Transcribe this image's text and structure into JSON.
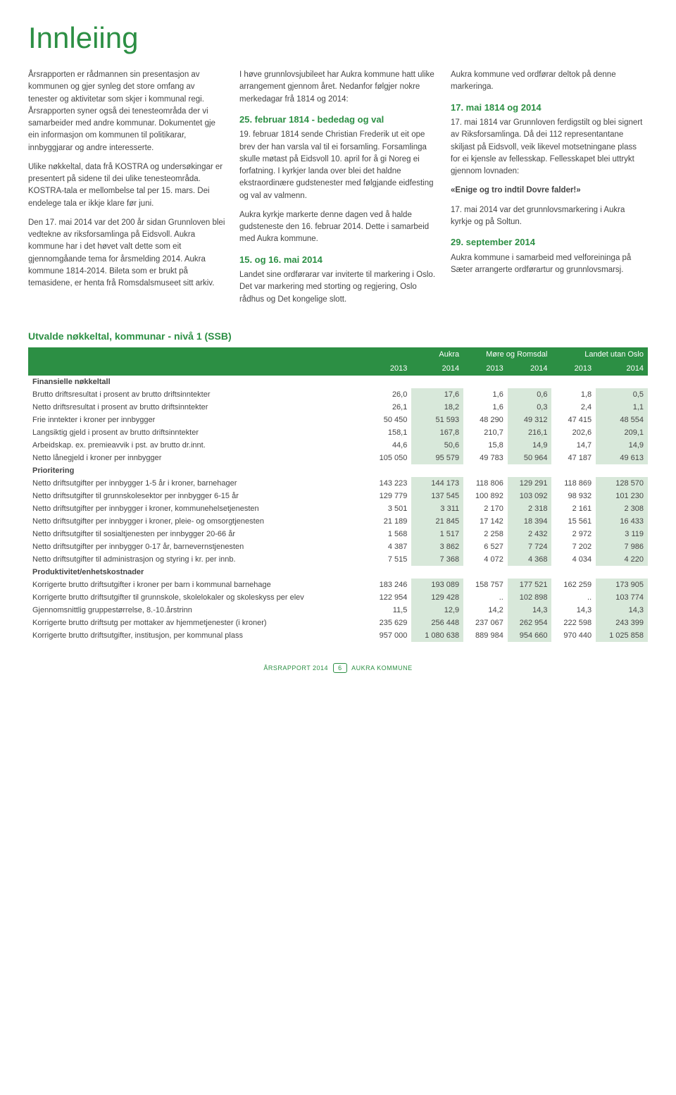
{
  "title": "Innleiing",
  "col1": {
    "p1": "Årsrapporten er rådmannen sin presentasjon av kommunen og gjer synleg det store omfang av tenester og aktivitetar som skjer i kommunal regi. Årsrapporten syner også dei tenesteområda der vi samarbeider med andre kommunar. Dokumentet gje ein informasjon om kommunen til politikarar, innbyggjarar og andre interesserte.",
    "p2": "Ulike nøkkeltal, data frå KOSTRA og undersøkingar er presentert på sidene til dei ulike tenesteområda. KOSTRA-tala er mellombelse tal per 15. mars. Dei endelege tala er ikkje klare før juni.",
    "p3": "Den 17. mai 2014 var det 200 år sidan Grunnloven blei vedtekne av riksforsamlinga på Eidsvoll. Aukra kommune har i det høvet valt dette som eit gjennomgåande tema for årsmelding 2014. Aukra kommune 1814-2014. Bileta som er brukt på temasidene, er henta frå Romsdalsmuseet sitt arkiv."
  },
  "col2": {
    "p1": "I høve grunnlovsjubileet har Aukra kommune hatt ulike arrangement gjennom året. Nedanfor følgjer nokre merkedagar frå 1814 og 2014:",
    "h1": "25. februar 1814 - bededag og val",
    "p2": "19. februar 1814 sende Christian Frederik ut eit ope brev der han varsla val til ei forsamling. Forsamlinga skulle møtast på Eidsvoll 10. april for å gi Noreg ei forfatning. I kyrkjer landa over blei det haldne ekstraordinære gudstenester med følgjande eidfesting og val av valmenn.",
    "p3": "Aukra kyrkje markerte denne dagen ved å halde gudsteneste den 16. februar 2014.  Dette i samarbeid med Aukra kommune.",
    "h2": "15. og 16. mai 2014",
    "p4": "Landet sine ordførarar var inviterte til markering i Oslo. Det var markering med storting og regjering, Oslo rådhus og Det kongelige slott."
  },
  "col3": {
    "p1": "Aukra kommune ved ordførar deltok på denne markeringa.",
    "h1": "17. mai 1814 og 2014",
    "p2": "17. mai 1814 var Grunnloven ferdigstilt og blei signert av Riksforsamlinga. Då dei 112 representantane skiljast på Eidsvoll, veik likevel motsetningane plass for ei kjensle av fellesskap. Fellesskapet blei uttrykt gjennom lovnaden:",
    "p3": "«Enige og tro indtil Dovre falder!»",
    "p4": "17. mai 2014 var det grunnlovsmarkering i Aukra kyrkje og på Soltun.",
    "h2": "29. september 2014",
    "p5": "Aukra kommune i samarbeid med velforeininga på Sæter arrangerte ordførartur og grunnlovsmarsj."
  },
  "table": {
    "title": "Utvalde nøkkeltal, kommunar - nivå 1 (SSB)",
    "groups": [
      "Aukra",
      "Møre og Romsdal",
      "Landet utan Oslo"
    ],
    "years": [
      "2013",
      "2014",
      "2013",
      "2014",
      "2013",
      "2014"
    ],
    "sections": [
      {
        "name": "Finansielle nøkkeltall",
        "rows": [
          {
            "l": "Brutto driftsresultat i prosent av brutto driftsinntekter",
            "v": [
              "26,0",
              "17,6",
              "1,6",
              "0,6",
              "1,8",
              "0,5"
            ]
          },
          {
            "l": "Netto driftsresultat i prosent av brutto driftsinntekter",
            "v": [
              "26,1",
              "18,2",
              "1,6",
              "0,3",
              "2,4",
              "1,1"
            ]
          },
          {
            "l": "Frie inntekter i kroner per innbygger",
            "v": [
              "50 450",
              "51 593",
              "48 290",
              "49 312",
              "47 415",
              "48 554"
            ]
          },
          {
            "l": "Langsiktig gjeld i prosent av brutto driftsinntekter",
            "v": [
              "158,1",
              "167,8",
              "210,7",
              "216,1",
              "202,6",
              "209,1"
            ]
          },
          {
            "l": "Arbeidskap. ex. premieavvik i pst. av brutto dr.innt.",
            "v": [
              "44,6",
              "50,6",
              "15,8",
              "14,9",
              "14,7",
              "14,9"
            ]
          },
          {
            "l": "Netto lånegjeld i kroner per innbygger",
            "v": [
              "105 050",
              "95 579",
              "49 783",
              "50 964",
              "47 187",
              "49 613"
            ]
          }
        ]
      },
      {
        "name": "Prioritering",
        "rows": [
          {
            "l": "Netto driftsutgifter per innbygger 1-5 år i kroner, barnehager",
            "v": [
              "143 223",
              "144 173",
              "118 806",
              "129 291",
              "118 869",
              "128 570"
            ]
          },
          {
            "l": "Netto driftsutgifter til grunnskolesektor per innbygger 6-15 år",
            "v": [
              "129 779",
              "137 545",
              "100 892",
              "103 092",
              "98 932",
              "101 230"
            ]
          },
          {
            "l": "Netto driftsutgifter per innbygger i kroner, kommune­helsetjenesten",
            "v": [
              "3 501",
              "3 311",
              "2 170",
              "2 318",
              "2 161",
              "2 308"
            ]
          },
          {
            "l": "Netto driftsutgifter per innbygger i kroner, pleie- og omsorgtjenesten",
            "v": [
              "21 189",
              "21 845",
              "17 142",
              "18 394",
              "15 561",
              "16 433"
            ]
          },
          {
            "l": "Netto driftsutgifter til sosialtjenesten per innbygger 20-66 år",
            "v": [
              "1 568",
              "1 517",
              "2 258",
              "2 432",
              "2 972",
              "3 119"
            ]
          },
          {
            "l": "Netto driftsutgifter per innbygger 0-17 år, barnevernstjenesten",
            "v": [
              "4 387",
              "3 862",
              "6 527",
              "7 724",
              "7 202",
              "7 986"
            ]
          },
          {
            "l": "Netto driftsutgifter til administrasjon og styring i kr. per innb.",
            "v": [
              "7 515",
              "7 368",
              "4 072",
              "4 368",
              "4 034",
              "4 220"
            ]
          }
        ]
      },
      {
        "name": "Produktivitet/enhetskostnader",
        "rows": [
          {
            "l": "Korrigerte brutto driftsutgifter i kroner per barn i kommunal barnehage",
            "v": [
              "183 246",
              "193 089",
              "158 757",
              "177 521",
              "162 259",
              "173 905"
            ]
          },
          {
            "l": "Korrigerte brutto driftsutgifter til grunnskole, skolelokaler og skoleskyss per elev",
            "v": [
              "122 954",
              "129 428",
              "..",
              "102 898",
              "..",
              "103 774"
            ]
          },
          {
            "l": "Gjennomsnittlig gruppestørrelse, 8.-10.årstrinn",
            "v": [
              "11,5",
              "12,9",
              "14,2",
              "14,3",
              "14,3",
              "14,3"
            ]
          },
          {
            "l": "Korrigerte brutto driftsutg per mottaker av hjemmetjenester (i kroner)",
            "v": [
              "235 629",
              "256 448",
              "237 067",
              "262 954",
              "222 598",
              "243 399"
            ]
          },
          {
            "l": "Korrigerte brutto driftsutgifter, institusjon, per kommunal plass",
            "v": [
              "957 000",
              "1 080 638",
              "889 984",
              "954 660",
              "970 440",
              "1 025 858"
            ]
          }
        ]
      }
    ]
  },
  "footer": {
    "left": "ÅRSRAPPORT 2014",
    "page": "6",
    "right": "AUKRA KOMMUNE"
  }
}
